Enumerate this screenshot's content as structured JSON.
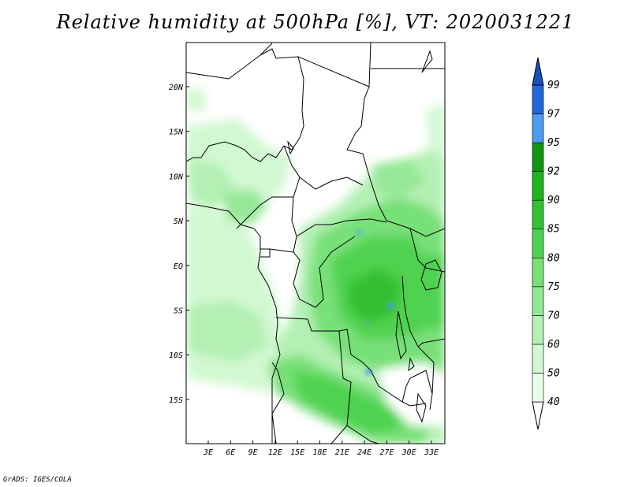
{
  "title": "Relative humidity at 500hPa [%], VT: 2020031221",
  "footer": "GrADS: IGES/COLA",
  "lat_labels": [
    "20N",
    "15N",
    "10N",
    "5N",
    "EQ",
    "5S",
    "10S",
    "15S"
  ],
  "lon_labels": [
    "3E",
    "6E",
    "9E",
    "12E",
    "15E",
    "18E",
    "21E",
    "24E",
    "27E",
    "30E",
    "33E"
  ],
  "colorbar": {
    "levels": [
      "40",
      "50",
      "60",
      "70",
      "75",
      "80",
      "85",
      "90",
      "92",
      "95",
      "97",
      "99"
    ],
    "colors": [
      "#ffffff",
      "#ebfdea",
      "#d2f8d2",
      "#b4f0b4",
      "#96e896",
      "#78e078",
      "#50d250",
      "#32c032",
      "#1eb41e",
      "#0f960f",
      "#4d9bf2",
      "#2266dd",
      "#1a4fbf"
    ]
  }
}
